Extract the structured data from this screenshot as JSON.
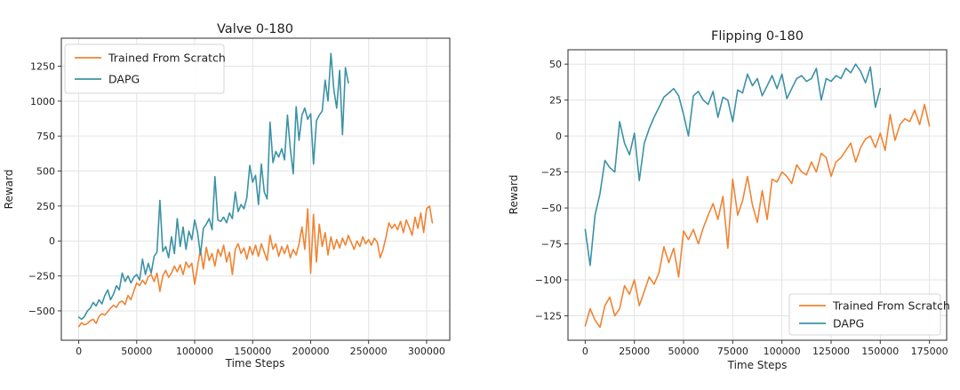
{
  "figure_background": "#ffffff",
  "palette": {
    "trained_from_scratch": "#ef8433",
    "dapg": "#3b92a6",
    "grid": "#e3e3e3",
    "spine": "#3c3c3c",
    "text": "#1f1f1f",
    "legend_border": "#d5d5d5"
  },
  "chart_data": [
    {
      "type": "line",
      "title": "Valve 0-180",
      "xlabel": "Time Steps",
      "ylabel": "Reward",
      "xlim": [
        -15000,
        320000
      ],
      "ylim": [
        -710,
        1450
      ],
      "grid": true,
      "xticks": {
        "values": [
          0,
          50000,
          100000,
          150000,
          200000,
          250000,
          300000
        ],
        "labels": [
          "0",
          "50000",
          "100000",
          "150000",
          "200000",
          "250000",
          "300000"
        ]
      },
      "yticks": {
        "values": [
          -500,
          -250,
          0,
          250,
          500,
          750,
          1000,
          1250
        ],
        "labels": [
          "−500",
          "−250",
          "0",
          "250",
          "500",
          "750",
          "1000",
          "1250"
        ]
      },
      "legend": {
        "position": "upper-left",
        "entries": [
          "Trained From Scratch",
          "DAPG"
        ]
      },
      "series": [
        {
          "name": "Trained From Scratch",
          "color": "#ef8433",
          "x_start": 0,
          "x_step": 2500,
          "y": [
            -612,
            -585,
            -600,
            -590,
            -570,
            -560,
            -590,
            -540,
            -520,
            -530,
            -505,
            -480,
            -460,
            -475,
            -440,
            -430,
            -455,
            -390,
            -420,
            -360,
            -300,
            -320,
            -280,
            -310,
            -255,
            -240,
            -290,
            -230,
            -360,
            -250,
            -210,
            -260,
            -230,
            -180,
            -220,
            -170,
            -240,
            -150,
            -190,
            -160,
            -310,
            -180,
            -60,
            -200,
            -45,
            -140,
            -90,
            -180,
            -60,
            -110,
            -30,
            -150,
            -80,
            -240,
            -60,
            -20,
            -90,
            -50,
            -130,
            -40,
            -100,
            -30,
            -110,
            -20,
            -80,
            -140,
            40,
            -60,
            -20,
            -110,
            -40,
            -90,
            -30,
            -120,
            -60,
            -100,
            -20,
            100,
            -60,
            230,
            -230,
            190,
            -150,
            120,
            -40,
            60,
            -100,
            30,
            -60,
            10,
            -50,
            20,
            -30,
            40,
            -10,
            -60,
            0,
            -40,
            30,
            -20,
            10,
            -30,
            20,
            -10,
            -120,
            -60,
            30,
            130,
            90,
            120,
            80,
            140,
            60,
            150,
            100,
            40,
            170,
            90,
            200,
            60,
            230,
            250,
            130
          ]
        },
        {
          "name": "DAPG",
          "color": "#3b92a6",
          "x_start": 0,
          "x_step": 2500,
          "y": [
            -545,
            -560,
            -540,
            -500,
            -480,
            -440,
            -465,
            -420,
            -450,
            -390,
            -350,
            -420,
            -380,
            -320,
            -350,
            -230,
            -290,
            -250,
            -300,
            -260,
            -240,
            -280,
            -130,
            -240,
            -160,
            -230,
            -110,
            -80,
            290,
            -75,
            -40,
            -120,
            30,
            -90,
            160,
            -40,
            100,
            -60,
            70,
            10,
            150,
            60,
            -100,
            90,
            120,
            160,
            80,
            460,
            150,
            140,
            170,
            130,
            200,
            160,
            350,
            210,
            260,
            230,
            310,
            540,
            420,
            470,
            260,
            550,
            350,
            300,
            850,
            560,
            640,
            600,
            660,
            580,
            900,
            660,
            480,
            960,
            720,
            900,
            950,
            870,
            910,
            550,
            860,
            900,
            930,
            1150,
            1000,
            1342,
            1080,
            950,
            1220,
            760,
            1240,
            1130
          ]
        }
      ]
    },
    {
      "type": "line",
      "title": "Flipping 0-180",
      "xlabel": "Time Steps",
      "ylabel": "Reward",
      "xlim": [
        -8750,
        183750
      ],
      "ylim": [
        -142,
        60
      ],
      "grid": true,
      "xticks": {
        "values": [
          0,
          25000,
          50000,
          75000,
          100000,
          125000,
          150000,
          175000
        ],
        "labels": [
          "0",
          "25000",
          "50000",
          "75000",
          "100000",
          "125000",
          "150000",
          "175000"
        ]
      },
      "yticks": {
        "values": [
          -125,
          -100,
          -75,
          -50,
          -25,
          0,
          25,
          50
        ],
        "labels": [
          "−125",
          "−100",
          "−75",
          "−50",
          "−25",
          "0",
          "25",
          "50"
        ]
      },
      "legend": {
        "position": "lower-right",
        "entries": [
          "Trained From Scratch",
          "DAPG"
        ]
      },
      "series": [
        {
          "name": "Trained From Scratch",
          "color": "#ef8433",
          "x_start": 0,
          "x_step": 2500,
          "y": [
            -132,
            -120,
            -128,
            -133,
            -118,
            -112,
            -125,
            -120,
            -104,
            -110,
            -100,
            -118,
            -108,
            -98,
            -103,
            -95,
            -77,
            -88,
            -78,
            -98,
            -66,
            -72,
            -65,
            -75,
            -64,
            -55,
            -47,
            -58,
            -42,
            -78,
            -30,
            -55,
            -45,
            -28,
            -48,
            -60,
            -38,
            -58,
            -30,
            -32,
            -25,
            -28,
            -33,
            -20,
            -25,
            -27,
            -18,
            -25,
            -12,
            -15,
            -28,
            -18,
            -15,
            -10,
            -5,
            -18,
            -8,
            -2,
            0,
            -8,
            2,
            -10,
            15,
            -3,
            8,
            12,
            10,
            18,
            8,
            22,
            7
          ]
        },
        {
          "name": "DAPG",
          "color": "#3b92a6",
          "x_start": 0,
          "x_step": 2500,
          "y": [
            -65,
            -90,
            -55,
            -40,
            -17,
            -22,
            -25,
            10,
            -5,
            -13,
            2,
            -31,
            -5,
            5,
            13,
            20,
            27,
            30,
            33,
            28,
            15,
            0,
            28,
            31,
            25,
            22,
            31,
            13,
            27,
            25,
            10,
            32,
            30,
            43,
            35,
            40,
            28,
            35,
            42,
            33,
            43,
            26,
            33,
            40,
            42,
            38,
            40,
            47,
            25,
            40,
            38,
            42,
            40,
            47,
            44,
            50,
            45,
            37,
            48,
            20,
            33
          ]
        }
      ]
    }
  ]
}
